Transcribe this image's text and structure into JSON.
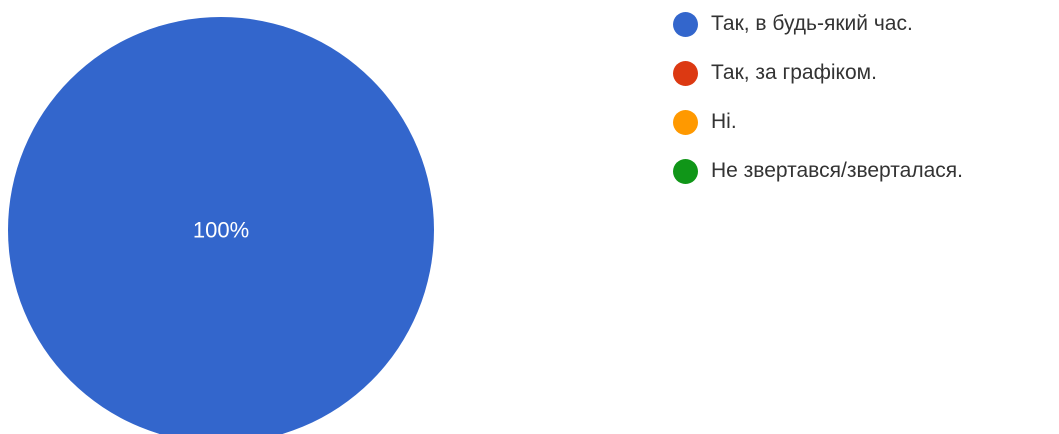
{
  "chart_data": {
    "type": "pie",
    "slices": [
      {
        "label": "Так, в будь-який час.",
        "value": 100,
        "color": "#3366cc"
      },
      {
        "label": "Так, за графіком.",
        "value": 0,
        "color": "#dc3912"
      },
      {
        "label": "Ні.",
        "value": 0,
        "color": "#ff9900"
      },
      {
        "label": "Не звертався/зверталася.",
        "value": 0,
        "color": "#109618"
      }
    ],
    "data_labels": [
      "100%"
    ],
    "legend_position": "right"
  }
}
